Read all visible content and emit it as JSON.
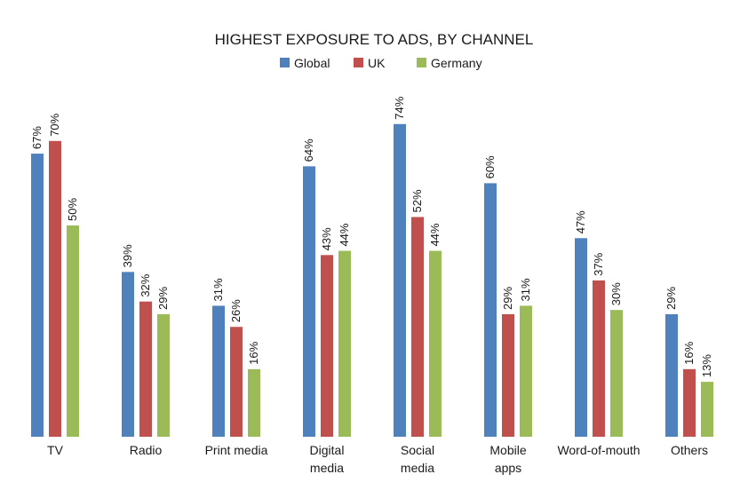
{
  "chart_data": {
    "type": "bar",
    "title": "HIGHEST EXPOSURE TO ADS, BY CHANNEL",
    "xlabel": "",
    "ylabel": "",
    "ylim": [
      0,
      80
    ],
    "grid": false,
    "legend_position": "top-center",
    "categories": [
      [
        "TV"
      ],
      [
        "Radio"
      ],
      [
        "Print media"
      ],
      [
        "Digital",
        "media"
      ],
      [
        "Social",
        "media"
      ],
      [
        "Mobile",
        "apps"
      ],
      [
        "Word-of-mouth"
      ],
      [
        "Others"
      ]
    ],
    "series": [
      {
        "name": "Global",
        "color": "#4f81bd",
        "values": [
          67,
          39,
          31,
          64,
          74,
          60,
          47,
          29
        ],
        "labels": [
          "67%",
          "39%",
          "31%",
          "64%",
          "74%",
          "60%",
          "47%",
          "29%"
        ]
      },
      {
        "name": "UK",
        "color": "#c0504d",
        "values": [
          70,
          32,
          26,
          43,
          52,
          29,
          37,
          16
        ],
        "labels": [
          "70%",
          "32%",
          "26%",
          "43%",
          "52%",
          "29%",
          "37%",
          "16%"
        ]
      },
      {
        "name": "Germany",
        "color": "#9bbb59",
        "values": [
          50,
          29,
          16,
          44,
          44,
          31,
          30,
          13
        ],
        "labels": [
          "50%",
          "29%",
          "16%",
          "44%",
          "44%",
          "31%",
          "30%",
          "13%"
        ]
      }
    ]
  }
}
